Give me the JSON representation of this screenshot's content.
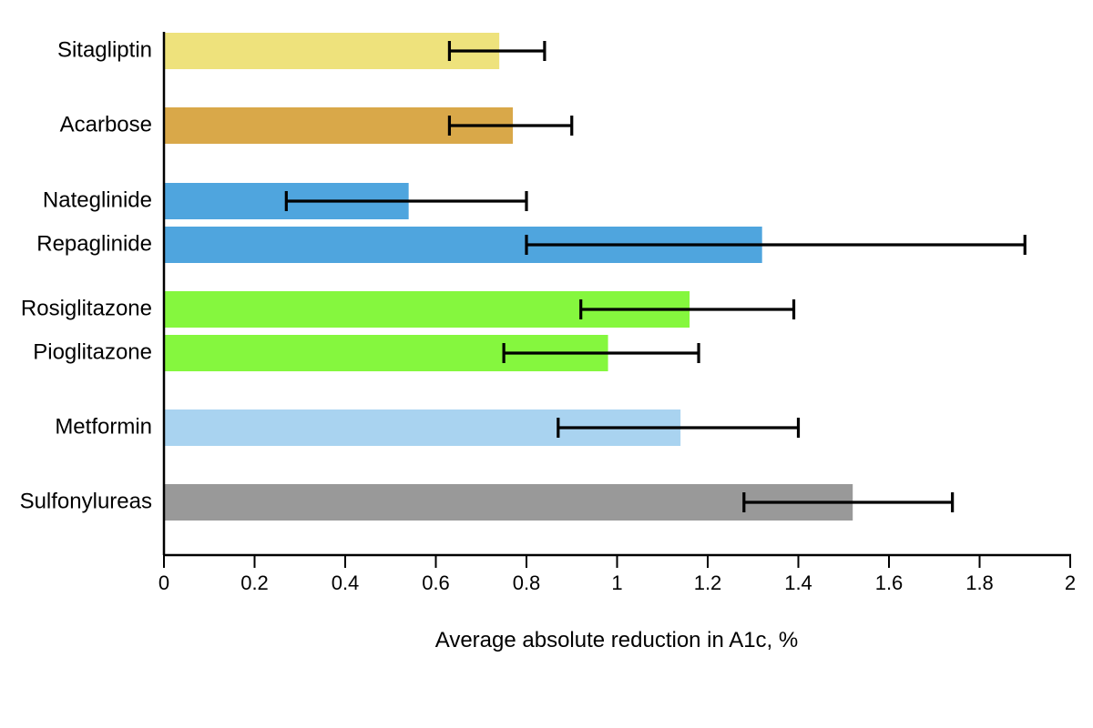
{
  "chart_data": {
    "type": "bar",
    "orientation": "horizontal",
    "title": "",
    "xlabel": "Average absolute reduction in A1c, %",
    "ylabel": "",
    "xlim": [
      0,
      2
    ],
    "x_ticks": [
      0,
      0.2,
      0.4,
      0.6,
      0.8,
      1,
      1.2,
      1.4,
      1.6,
      1.8,
      2
    ],
    "x_tick_labels": [
      "0",
      "0.2",
      "0.4",
      "0.6",
      "0.8",
      "1",
      "1.2",
      "1.4",
      "1.6",
      "1.8",
      "2"
    ],
    "grid": false,
    "legend": "none",
    "bars": [
      {
        "label": "Sitagliptin",
        "value": 0.74,
        "error_low": 0.63,
        "error_high": 0.84,
        "color": "#EEE27C"
      },
      {
        "label": "Acarbose",
        "value": 0.77,
        "error_low": 0.63,
        "error_high": 0.9,
        "color": "#D9A849"
      },
      {
        "label": "Nateglinide",
        "value": 0.54,
        "error_low": 0.27,
        "error_high": 0.8,
        "color": "#4FA5DE"
      },
      {
        "label": "Repaglinide",
        "value": 1.32,
        "error_low": 0.8,
        "error_high": 1.9,
        "color": "#4FA5DE"
      },
      {
        "label": "Rosiglitazone",
        "value": 1.16,
        "error_low": 0.92,
        "error_high": 1.39,
        "color": "#85F73E"
      },
      {
        "label": "Pioglitazone",
        "value": 0.98,
        "error_low": 0.75,
        "error_high": 1.18,
        "color": "#85F73E"
      },
      {
        "label": "Metformin",
        "value": 1.14,
        "error_low": 0.87,
        "error_high": 1.4,
        "color": "#A9D3F0"
      },
      {
        "label": "Sulfonylureas",
        "value": 1.52,
        "error_low": 1.28,
        "error_high": 1.74,
        "color": "#999999"
      }
    ]
  }
}
